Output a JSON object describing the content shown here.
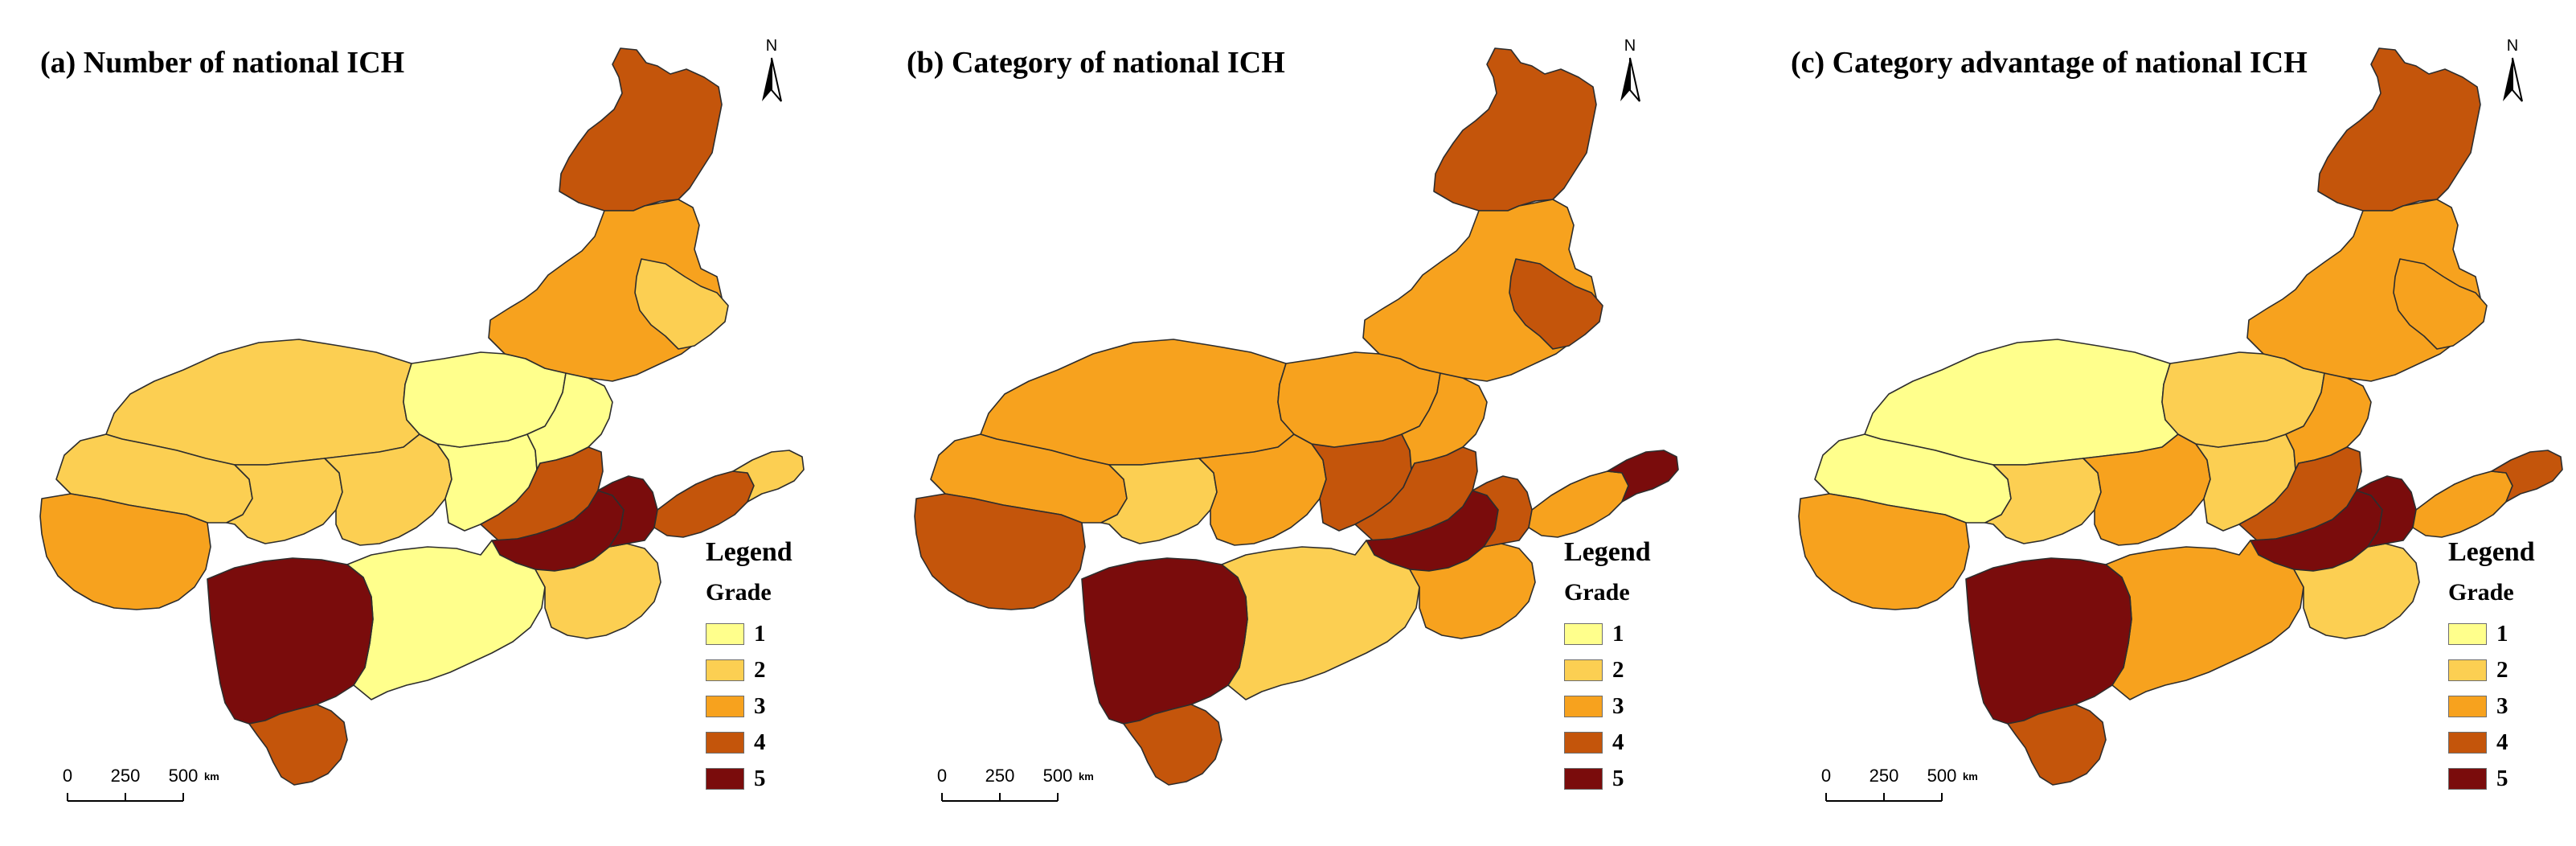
{
  "colors": {
    "grade_1": "#ffff8c",
    "grade_2": "#fccf52",
    "grade_3": "#f7a21e",
    "grade_4": "#c4550b",
    "grade_5": "#7a0c0c",
    "boundary": "#2d2d2d"
  },
  "legend": {
    "title": "Legend",
    "subtitle": "Grade",
    "items": [
      {
        "label": "1",
        "grade": 1
      },
      {
        "label": "2",
        "grade": 2
      },
      {
        "label": "3",
        "grade": 3
      },
      {
        "label": "4",
        "grade": 4
      },
      {
        "label": "5",
        "grade": 5
      }
    ]
  },
  "north_arrow": {
    "label": "N",
    "icon": "north-arrow-icon"
  },
  "scale_bar": {
    "labels": [
      "0",
      "250",
      "500"
    ],
    "unit": "km"
  },
  "panels": [
    {
      "id": "a",
      "title": "(a) Number of national ICH",
      "regions": {
        "far_ne": 4,
        "ne_main": 3,
        "ne_east": 2,
        "inner_north": 1,
        "northwest": 2,
        "west_tip": 3,
        "west_mid": 2,
        "central_a": 2,
        "central_b": 2,
        "central_c": 1,
        "north_central": 1,
        "loess_e": 5,
        "loess_w": 4,
        "sw_block": 5,
        "sw_tail": 4,
        "south_central": 1,
        "east_block": 2,
        "shandong_w": 5,
        "shandong_e": 4,
        "shandong_tip": 2
      }
    },
    {
      "id": "b",
      "title": "(b) Category of national ICH",
      "regions": {
        "far_ne": 4,
        "ne_main": 3,
        "ne_east": 4,
        "inner_north": 3,
        "northwest": 3,
        "west_tip": 4,
        "west_mid": 3,
        "central_a": 2,
        "central_b": 3,
        "central_c": 4,
        "north_central": 3,
        "loess_e": 5,
        "loess_w": 4,
        "sw_block": 5,
        "sw_tail": 4,
        "south_central": 2,
        "east_block": 3,
        "shandong_w": 4,
        "shandong_e": 3,
        "shandong_tip": 5
      }
    },
    {
      "id": "c",
      "title": "(c) Category advantage of national ICH",
      "regions": {
        "far_ne": 4,
        "ne_main": 3,
        "ne_east": 3,
        "inner_north": 2,
        "northwest": 1,
        "west_tip": 3,
        "west_mid": 1,
        "central_a": 2,
        "central_b": 3,
        "central_c": 2,
        "north_central": 3,
        "loess_e": 5,
        "loess_w": 4,
        "sw_block": 5,
        "sw_tail": 4,
        "south_central": 3,
        "east_block": 2,
        "shandong_w": 5,
        "shandong_e": 3,
        "shandong_tip": 4
      }
    }
  ]
}
